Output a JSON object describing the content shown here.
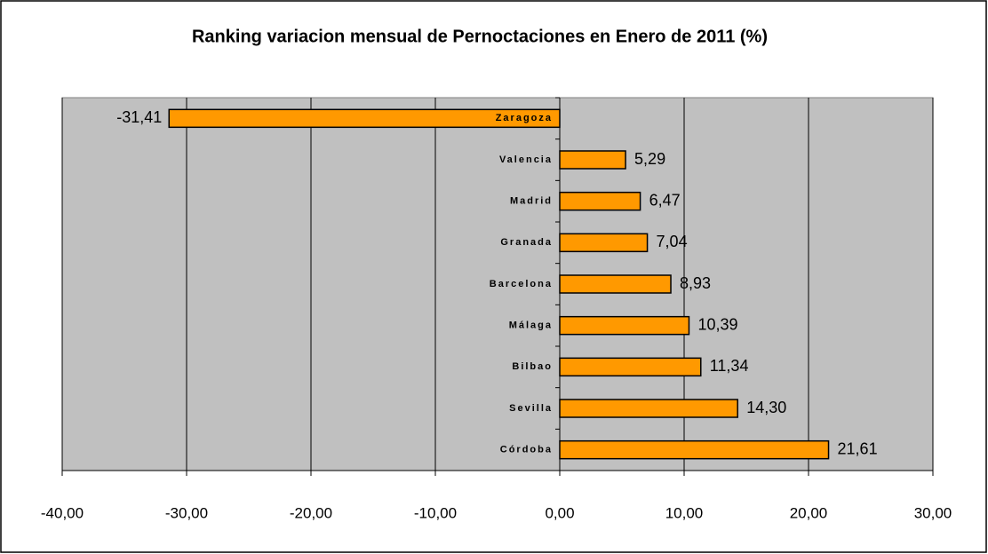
{
  "chart_data": {
    "type": "hbar",
    "title": "Ranking variacion mensual de Pernoctaciones en Enero de 2011 (%)",
    "categories": [
      "Zaragoza",
      "Valencia",
      "Madrid",
      "Granada",
      "Barcelona",
      "Málaga",
      "Bilbao",
      "Sevilla",
      "Córdoba"
    ],
    "values": [
      -31.41,
      5.29,
      6.47,
      7.04,
      8.93,
      10.39,
      11.34,
      14.3,
      21.61
    ],
    "value_labels": [
      "-31,41",
      "5,29",
      "6,47",
      "7,04",
      "8,93",
      "10,39",
      "11,34",
      "14,30",
      "21,61"
    ],
    "color": "#ff9900",
    "xlim": [
      -40,
      30
    ],
    "xticks": [
      {
        "value": -40,
        "label": "-40,00"
      },
      {
        "value": -30,
        "label": "-30,00"
      },
      {
        "value": -20,
        "label": "-20,00"
      },
      {
        "value": -10,
        "label": "-10,00"
      },
      {
        "value": 0,
        "label": "0,00"
      },
      {
        "value": 10,
        "label": "10,00"
      },
      {
        "value": 20,
        "label": "20,00"
      },
      {
        "value": 30,
        "label": "30,00"
      }
    ],
    "grid": true
  }
}
